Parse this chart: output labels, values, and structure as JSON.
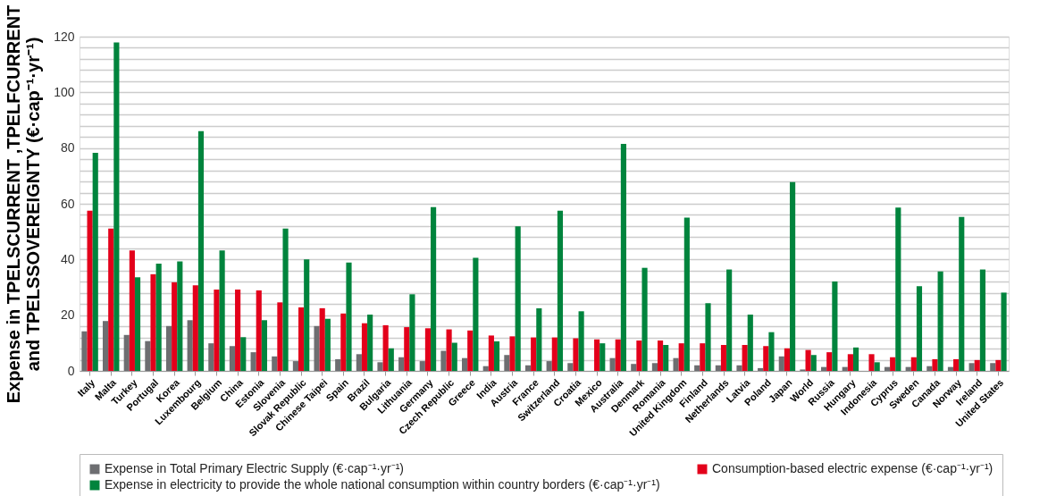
{
  "chart_data": {
    "type": "bar",
    "ylabel": "Expense in TPELSCURRENT ,TPELFCURRENT and TPELSSOVEREIGNTY (€·cap⁻¹·yr⁻¹)",
    "categories": [
      "Italy",
      "Malta",
      "Turkey",
      "Portugal",
      "Korea",
      "Luxembourg",
      "Belgium",
      "China",
      "Estonia",
      "Slovenia",
      "Slovak Republic",
      "Chinese Taipei",
      "Spain",
      "Brazil",
      "Bulgaria",
      "Lithuania",
      "Germany",
      "Czech Republic",
      "Greece",
      "India",
      "Austria",
      "France",
      "Switzerland",
      "Croatia",
      "Mexico",
      "Australia",
      "Denmark",
      "Romania",
      "United Kingdom",
      "Finland",
      "Netherlands",
      "Latvia",
      "Poland",
      "Japan",
      "World",
      "Russia",
      "Hungary",
      "Indonesia",
      "Cyprus",
      "Sweden",
      "Canada",
      "Norway",
      "Ireland",
      "United States"
    ],
    "series": [
      {
        "name": "Expense in Total Primary Electric Supply (€·cap⁻¹·yr⁻¹)",
        "color": "#6d6e71",
        "values": [
          14.2,
          17.9,
          12.9,
          10.7,
          16.1,
          18.2,
          9.9,
          8.9,
          6.7,
          5.2,
          3.5,
          16.1,
          4.2,
          6.0,
          3.1,
          4.9,
          3.5,
          7.2,
          4.6,
          1.7,
          5.7,
          2.0,
          3.5,
          2.8,
          null,
          4.6,
          2.5,
          2.8,
          4.6,
          2.0,
          2.0,
          2.0,
          1.0,
          5.2,
          0.5,
          1.4,
          1.4,
          null,
          1.4,
          1.4,
          1.7,
          1.4,
          2.8,
          2.8
        ]
      },
      {
        "name": "Consumption-based electric expense (€·cap⁻¹·yr⁻¹)",
        "color": "#e3001b",
        "values": [
          57.5,
          51.1,
          43.2,
          34.7,
          31.8,
          30.7,
          29.2,
          29.2,
          28.9,
          24.6,
          22.8,
          22.5,
          20.6,
          17.1,
          16.4,
          15.7,
          15.3,
          14.9,
          14.5,
          12.7,
          12.4,
          12.0,
          12.0,
          11.7,
          11.3,
          11.3,
          10.9,
          10.9,
          9.9,
          9.9,
          9.3,
          9.3,
          8.9,
          8.1,
          7.5,
          6.7,
          6.0,
          6.0,
          4.9,
          4.9,
          4.2,
          4.2,
          3.9,
          3.9
        ]
      },
      {
        "name": "Expense in electricity to provide the whole national consumption within country borders (€·cap⁻¹·yr⁻¹)",
        "color": "#00843d",
        "values": [
          78.3,
          117.9,
          33.6,
          38.5,
          39.3,
          86.1,
          43.2,
          12.1,
          18.2,
          51.1,
          40.0,
          18.7,
          38.9,
          20.2,
          8.1,
          27.5,
          58.8,
          10.1,
          40.6,
          10.6,
          51.9,
          22.5,
          57.5,
          21.4,
          9.9,
          81.5,
          37.0,
          9.3,
          55.0,
          24.3,
          36.4,
          20.2,
          13.9,
          67.8,
          5.7,
          32.1,
          8.4,
          3.1,
          58.6,
          30.4,
          35.7,
          55.3,
          36.4,
          28.1
        ]
      }
    ],
    "ylim": [
      0,
      120
    ],
    "yticks": [
      0,
      {
        "value": 4,
        "label": null
      },
      {
        "value": 8,
        "label": null
      },
      {
        "value": 12,
        "label": null
      },
      {
        "value": 16,
        "label": null
      },
      20,
      {
        "value": 24,
        "label": null
      },
      {
        "value": 28,
        "label": null
      },
      {
        "value": 32,
        "label": null
      },
      {
        "value": 36,
        "label": null
      },
      40,
      {
        "value": 44,
        "label": null
      },
      {
        "value": 48,
        "label": null
      },
      {
        "value": 52,
        "label": null
      },
      {
        "value": 56,
        "label": null
      },
      60,
      {
        "value": 64,
        "label": null
      },
      {
        "value": 68,
        "label": null
      },
      {
        "value": 72,
        "label": null
      },
      {
        "value": 76,
        "label": null
      },
      80,
      {
        "value": 84,
        "label": null
      },
      {
        "value": 88,
        "label": null
      },
      {
        "value": 92,
        "label": null
      },
      {
        "value": 96,
        "label": null
      },
      100,
      {
        "value": 104,
        "label": null
      },
      {
        "value": 108,
        "label": null
      },
      {
        "value": 112,
        "label": null
      },
      {
        "value": 116,
        "label": null
      },
      120
    ],
    "grid": "y",
    "legend": "bottom"
  }
}
